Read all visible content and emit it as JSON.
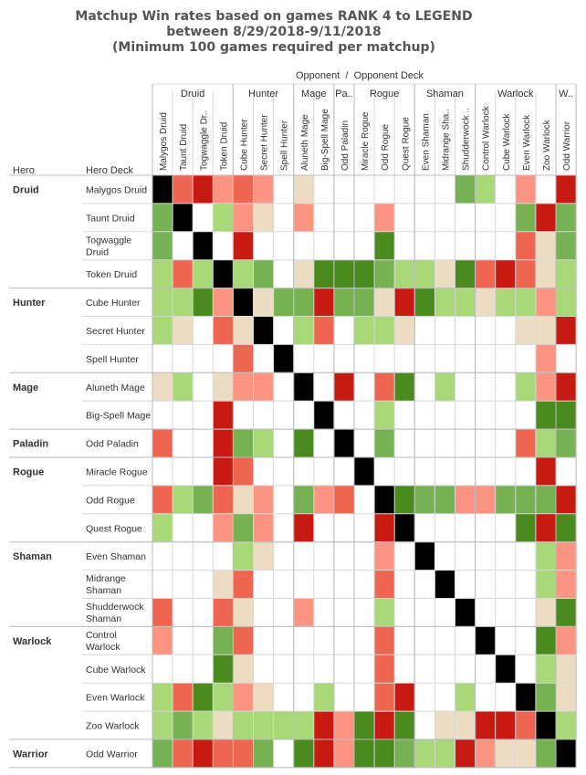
{
  "chart_data": {
    "type": "heatmap",
    "title_lines": [
      "Matchup Win rates based on games RANK 4 to LEGEND",
      "between 8/29/2018-9/11/2018",
      "(Minimum 100 games required per matchup)"
    ],
    "column_axis_label": "Opponent  /  Opponent Deck",
    "row_header_labels": [
      "Hero",
      "Hero Deck"
    ],
    "legend": "none",
    "colors": {
      "self": "#000000",
      "none": "#ffffff",
      "strong_fav": "#4a8a1e",
      "fav": "#76b254",
      "slight_fav": "#a8d878",
      "even": "#ecdcc4",
      "slight_unfav": "#fc9484",
      "unfav": "#ee6551",
      "strong_unfav": "#c71a12"
    },
    "column_groups": [
      {
        "hero": "Druid",
        "count": 4
      },
      {
        "hero": "Hunter",
        "count": 3
      },
      {
        "hero": "Mage",
        "count": 2
      },
      {
        "hero": "Pa..",
        "count": 1
      },
      {
        "hero": "Rogue",
        "count": 3
      },
      {
        "hero": "Shaman",
        "count": 3
      },
      {
        "hero": "Warlock",
        "count": 4
      },
      {
        "hero": "W..",
        "count": 1
      }
    ],
    "columns": [
      "Malygos Druid",
      "Taunt Druid",
      "Togwaggle Dr..",
      "Token Druid",
      "Cube Hunter",
      "Secret Hunter",
      "Spell Hunter",
      "Aluneth Mage",
      "Big-Spell Mage",
      "Odd Paladin",
      "Miracle Rogue",
      "Odd Rogue",
      "Quest Rogue",
      "Even Shaman",
      "Midrange Sha..",
      "Shudderwock ..",
      "Control Warlock",
      "Cube Warlock",
      "Even Warlock",
      "Zoo Warlock",
      "Odd Warrior"
    ],
    "row_groups": [
      {
        "hero": "Druid",
        "count": 4
      },
      {
        "hero": "Hunter",
        "count": 3
      },
      {
        "hero": "Mage",
        "count": 2
      },
      {
        "hero": "Paladin",
        "count": 1
      },
      {
        "hero": "Rogue",
        "count": 3
      },
      {
        "hero": "Shaman",
        "count": 3
      },
      {
        "hero": "Warlock",
        "count": 4
      },
      {
        "hero": "Warrior",
        "count": 1
      }
    ],
    "rows": [
      {
        "label": [
          "Malygos Druid"
        ],
        "cells": "XuUrurnEnnnnnnnFLnrnU"
      },
      {
        "label": [
          "Taunt Druid"
        ],
        "cells": "FXnLrEnrnnnrnnnnnnFUF"
      },
      {
        "label": [
          "Togwaggle",
          "Druid"
        ],
        "cells": "FnXnUnnnnnnSnnnnnnuEF"
      },
      {
        "label": [
          "Token Druid"
        ],
        "cells": "LuLXLFnESSSFLLESuUuEL"
      },
      {
        "label": [
          "Cube Hunter"
        ],
        "cells": "LLSrXEFFUFFEUSLLELLrL"
      },
      {
        "label": [
          "Secret Hunter"
        ],
        "cells": "LEnuEXnLunLLEnnnnnEEU"
      },
      {
        "label": [
          "Spell Hunter"
        ],
        "cells": "nnnnunXnnnnnnnnnnnnrn"
      },
      {
        "label": [
          "Aluneth Mage"
        ],
        "cells": "ELnErrnXnUnuSnLnnnLrU"
      },
      {
        "label": [
          "Big-Spell Mage"
        ],
        "cells": "nnnUnnnnXnnLnnnnnnnSS"
      },
      {
        "label": [
          "Odd Paladin"
        ],
        "cells": "unnUFLnSnXnFnnnnnnuLF"
      },
      {
        "label": [
          "Miracle Rogue"
        ],
        "cells": "nnnUunnnnnXnnnnnnnnUn"
      },
      {
        "label": [
          "Odd Rogue"
        ],
        "cells": "uLFuErnFrunXSFFrrFFFU"
      },
      {
        "label": [
          "Quest Rogue"
        ],
        "cells": "LnnrFrnUnnnUXnnnnnSUS"
      },
      {
        "label": [
          "Even Shaman"
        ],
        "cells": "nnnnLEnnnnnrnXnnnnnLr"
      },
      {
        "label": [
          "Midrange",
          "Shaman"
        ],
        "cells": "nnnEunnnnnnunnXnnnnLr"
      },
      {
        "label": [
          "Shudderwock",
          "Shaman"
        ],
        "cells": "unnuEnnrnnnLnnnXnnnES"
      },
      {
        "label": [
          "Control",
          "Warlock"
        ],
        "cells": "rnnFunnnnnnunnnnXnnSr"
      },
      {
        "label": [
          "Cube Warlock"
        ],
        "cells": "nnnSEnnnnnnunnnnnXnLE"
      },
      {
        "label": [
          "Even Warlock"
        ],
        "cells": "LuSLrEnnLnnuUnnLnnXFE"
      },
      {
        "label": [
          "Zoo Warlock"
        ],
        "cells": "LFLELLLLUrSUSnEEUUuXL"
      },
      {
        "label": [
          "Odd Warrior"
        ],
        "cells": "FuUuuFnSUrSSFLLUrEEFX"
      }
    ]
  }
}
